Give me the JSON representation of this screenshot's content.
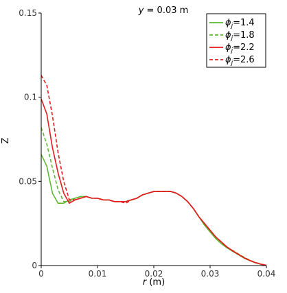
{
  "chart_data": {
    "type": "line",
    "title_prefix": "y",
    "title_suffix": " = 0.03 m",
    "xlabel_var": "r",
    "xlabel_unit": " (m)",
    "ylabel": "Z",
    "xlim": [
      0,
      0.04
    ],
    "ylim": [
      0,
      0.15
    ],
    "x_ticks": [
      {
        "value": 0,
        "label": "0"
      },
      {
        "value": 0.01,
        "label": "0.01"
      },
      {
        "value": 0.02,
        "label": "0.02"
      },
      {
        "value": 0.03,
        "label": "0.03"
      },
      {
        "value": 0.04,
        "label": "0.04"
      }
    ],
    "y_ticks": [
      {
        "value": 0,
        "label": "0"
      },
      {
        "value": 0.05,
        "label": "0.05"
      },
      {
        "value": 0.1,
        "label": "0.1"
      },
      {
        "value": 0.15,
        "label": "0.15"
      }
    ],
    "grid": false,
    "legend_position": "top-right",
    "series": [
      {
        "name": "1.4",
        "color": "#5cb82e",
        "dash": "solid",
        "points": [
          [
            0,
            0.066
          ],
          [
            0.001,
            0.059
          ],
          [
            0.002,
            0.043
          ],
          [
            0.003,
            0.037
          ],
          [
            0.004,
            0.037
          ],
          [
            0.005,
            0.039
          ],
          [
            0.006,
            0.04
          ],
          [
            0.007,
            0.041
          ],
          [
            0.008,
            0.041
          ],
          [
            0.009,
            0.04
          ],
          [
            0.01,
            0.04
          ],
          [
            0.011,
            0.039
          ],
          [
            0.012,
            0.039
          ],
          [
            0.013,
            0.038
          ],
          [
            0.014,
            0.038
          ],
          [
            0.015,
            0.038
          ],
          [
            0.016,
            0.039
          ],
          [
            0.017,
            0.04
          ],
          [
            0.018,
            0.042
          ],
          [
            0.019,
            0.043
          ],
          [
            0.02,
            0.044
          ],
          [
            0.021,
            0.044
          ],
          [
            0.022,
            0.044
          ],
          [
            0.023,
            0.044
          ],
          [
            0.024,
            0.043
          ],
          [
            0.025,
            0.041
          ],
          [
            0.026,
            0.038
          ],
          [
            0.027,
            0.034
          ],
          [
            0.028,
            0.029
          ],
          [
            0.029,
            0.024
          ],
          [
            0.03,
            0.02
          ],
          [
            0.031,
            0.016
          ],
          [
            0.032,
            0.013
          ],
          [
            0.033,
            0.0105
          ],
          [
            0.034,
            0.0085
          ],
          [
            0.035,
            0.0065
          ],
          [
            0.036,
            0.0045
          ],
          [
            0.037,
            0.003
          ],
          [
            0.038,
            0.0017
          ],
          [
            0.039,
            0.0008
          ],
          [
            0.04,
            0.0002
          ]
        ]
      },
      {
        "name": "1.8",
        "color": "#5cb82e",
        "dash": "dashed",
        "points": [
          [
            0,
            0.082
          ],
          [
            0.001,
            0.072
          ],
          [
            0.002,
            0.058
          ],
          [
            0.003,
            0.045
          ],
          [
            0.004,
            0.038
          ],
          [
            0.005,
            0.038
          ],
          [
            0.006,
            0.04
          ],
          [
            0.007,
            0.041
          ],
          [
            0.008,
            0.041
          ],
          [
            0.009,
            0.04
          ],
          [
            0.01,
            0.04
          ],
          [
            0.011,
            0.039
          ],
          [
            0.012,
            0.039
          ],
          [
            0.013,
            0.038
          ],
          [
            0.014,
            0.038
          ],
          [
            0.015,
            0.038
          ],
          [
            0.016,
            0.039
          ],
          [
            0.017,
            0.04
          ],
          [
            0.018,
            0.042
          ],
          [
            0.019,
            0.043
          ],
          [
            0.02,
            0.044
          ],
          [
            0.021,
            0.044
          ],
          [
            0.022,
            0.044
          ],
          [
            0.023,
            0.044
          ],
          [
            0.024,
            0.043
          ],
          [
            0.025,
            0.041
          ],
          [
            0.026,
            0.038
          ],
          [
            0.027,
            0.034
          ],
          [
            0.028,
            0.029
          ],
          [
            0.029,
            0.025
          ],
          [
            0.03,
            0.021
          ],
          [
            0.031,
            0.017
          ],
          [
            0.032,
            0.014
          ],
          [
            0.033,
            0.011
          ],
          [
            0.034,
            0.009
          ],
          [
            0.035,
            0.007
          ],
          [
            0.036,
            0.005
          ],
          [
            0.037,
            0.0033
          ],
          [
            0.038,
            0.0019
          ],
          [
            0.039,
            0.0009
          ],
          [
            0.04,
            0.0002
          ]
        ]
      },
      {
        "name": "2.2",
        "color": "#e41a1c",
        "dash": "solid",
        "points": [
          [
            0,
            0.099
          ],
          [
            0.001,
            0.09
          ],
          [
            0.002,
            0.07
          ],
          [
            0.003,
            0.055
          ],
          [
            0.004,
            0.043
          ],
          [
            0.005,
            0.037
          ],
          [
            0.006,
            0.039
          ],
          [
            0.007,
            0.04
          ],
          [
            0.008,
            0.041
          ],
          [
            0.009,
            0.04
          ],
          [
            0.01,
            0.04
          ],
          [
            0.011,
            0.039
          ],
          [
            0.012,
            0.039
          ],
          [
            0.013,
            0.038
          ],
          [
            0.014,
            0.038
          ],
          [
            0.015,
            0.038
          ],
          [
            0.016,
            0.039
          ],
          [
            0.017,
            0.04
          ],
          [
            0.018,
            0.042
          ],
          [
            0.019,
            0.043
          ],
          [
            0.02,
            0.044
          ],
          [
            0.021,
            0.044
          ],
          [
            0.022,
            0.044
          ],
          [
            0.023,
            0.044
          ],
          [
            0.024,
            0.043
          ],
          [
            0.025,
            0.041
          ],
          [
            0.026,
            0.038
          ],
          [
            0.027,
            0.034
          ],
          [
            0.028,
            0.029
          ],
          [
            0.029,
            0.025
          ],
          [
            0.03,
            0.021
          ],
          [
            0.031,
            0.017
          ],
          [
            0.032,
            0.014
          ],
          [
            0.033,
            0.011
          ],
          [
            0.034,
            0.0088
          ],
          [
            0.035,
            0.0067
          ],
          [
            0.036,
            0.0047
          ],
          [
            0.037,
            0.0031
          ],
          [
            0.038,
            0.0018
          ],
          [
            0.039,
            0.0008
          ],
          [
            0.04,
            0.0002
          ]
        ]
      },
      {
        "name": "2.6",
        "color": "#e41a1c",
        "dash": "dashed",
        "points": [
          [
            0,
            0.113
          ],
          [
            0.001,
            0.107
          ],
          [
            0.002,
            0.089
          ],
          [
            0.003,
            0.067
          ],
          [
            0.004,
            0.05
          ],
          [
            0.005,
            0.039
          ],
          [
            0.006,
            0.039
          ],
          [
            0.007,
            0.04
          ],
          [
            0.008,
            0.041
          ],
          [
            0.009,
            0.04
          ],
          [
            0.01,
            0.04
          ],
          [
            0.011,
            0.039
          ],
          [
            0.012,
            0.039
          ],
          [
            0.013,
            0.038
          ],
          [
            0.014,
            0.038
          ],
          [
            0.015,
            0.037
          ],
          [
            0.016,
            0.039
          ],
          [
            0.017,
            0.04
          ],
          [
            0.018,
            0.042
          ],
          [
            0.019,
            0.043
          ],
          [
            0.02,
            0.044
          ],
          [
            0.021,
            0.044
          ],
          [
            0.022,
            0.044
          ],
          [
            0.023,
            0.044
          ],
          [
            0.024,
            0.043
          ],
          [
            0.025,
            0.041
          ],
          [
            0.026,
            0.038
          ],
          [
            0.027,
            0.034
          ],
          [
            0.028,
            0.029
          ],
          [
            0.029,
            0.025
          ],
          [
            0.03,
            0.021
          ],
          [
            0.031,
            0.017
          ],
          [
            0.032,
            0.014
          ],
          [
            0.033,
            0.011
          ],
          [
            0.034,
            0.0088
          ],
          [
            0.035,
            0.0067
          ],
          [
            0.036,
            0.0047
          ],
          [
            0.037,
            0.0031
          ],
          [
            0.038,
            0.0018
          ],
          [
            0.039,
            0.0008
          ],
          [
            0.04,
            0.0002
          ]
        ]
      }
    ],
    "legend_prefix": "ϕ",
    "legend_subscript": "j"
  }
}
